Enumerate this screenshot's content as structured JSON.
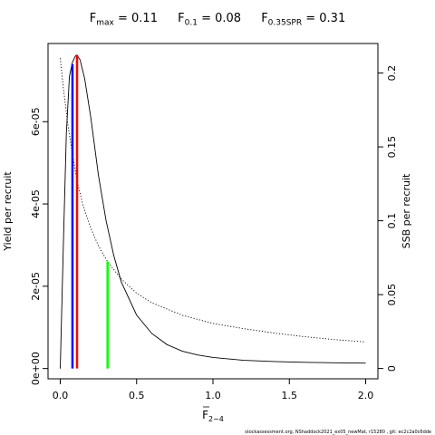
{
  "title": {
    "fmax": {
      "sym": "F",
      "sub": "max",
      "value": " = 0.11"
    },
    "f01": {
      "sym": "F",
      "sub": "0.1",
      "value": " = 0.08"
    },
    "fspr": {
      "sym": "F",
      "sub": "0.35SPR",
      "value": " = 0.31"
    }
  },
  "footer_text": "stockassessment.org, NShaddock2021_ex05_newMat, r15280 , git: ec2c2a0c6dde",
  "chart_data": {
    "type": "line",
    "xlabel": {
      "sym": "F",
      "sub": "2−4"
    },
    "ylabel": "Yield per recruit",
    "y2label": "SSB per recruit",
    "xlim": [
      -0.08,
      2.08
    ],
    "ylim": [
      -2.5e-06,
      7.9e-05
    ],
    "y2lim": [
      -0.007,
      0.22
    ],
    "x_ticks": [
      0,
      0.5,
      1,
      1.5,
      2
    ],
    "x_tick_labels": [
      "0.0",
      "0.5",
      "1.0",
      "1.5",
      "2.0"
    ],
    "y_ticks": [
      0,
      2e-05,
      4e-05,
      6e-05
    ],
    "y_tick_labels": [
      "0e+00",
      "2e-05",
      "4e-05",
      "6e-05"
    ],
    "y2_ticks": [
      0,
      0.05,
      0.1,
      0.15,
      0.2
    ],
    "y2_tick_labels": [
      "0",
      "0.05",
      "0.1",
      "0.15",
      "0.2"
    ],
    "series": [
      {
        "axis": "left",
        "style": "solid",
        "x": [
          0,
          0.02,
          0.04,
          0.06,
          0.08,
          0.1,
          0.11,
          0.13,
          0.16,
          0.2,
          0.25,
          0.3,
          0.35,
          0.4,
          0.5,
          0.6,
          0.7,
          0.8,
          0.9,
          1.0,
          1.2,
          1.4,
          1.6,
          1.8,
          2.0
        ],
        "y": [
          0,
          3e-05,
          5.7e-05,
          7.1e-05,
          7.45e-05,
          7.6e-05,
          7.62e-05,
          7.5e-05,
          7.05e-05,
          6.1e-05,
          4.7e-05,
          3.6e-05,
          2.75e-05,
          2.1e-05,
          1.3e-05,
          8.5e-06,
          5.8e-06,
          4.2e-06,
          3.3e-06,
          2.7e-06,
          2e-06,
          1.7e-06,
          1.5e-06,
          1.4e-06,
          1.3e-06
        ]
      },
      {
        "axis": "right",
        "style": "dotted",
        "x": [
          0,
          0.02,
          0.05,
          0.08,
          0.11,
          0.15,
          0.2,
          0.25,
          0.31,
          0.4,
          0.5,
          0.6,
          0.8,
          1.0,
          1.2,
          1.4,
          1.6,
          1.8,
          2.0
        ],
        "y": [
          0.21,
          0.19,
          0.165,
          0.145,
          0.127,
          0.11,
          0.095,
          0.083,
          0.0723,
          0.0605,
          0.051,
          0.0445,
          0.036,
          0.0305,
          0.027,
          0.024,
          0.0215,
          0.0195,
          0.018
        ]
      }
    ],
    "reference_lines": [
      {
        "label": "F0.1",
        "x": 0.08,
        "y": 7.4e-05,
        "color": "#0000ff"
      },
      {
        "label": "Fmax",
        "x": 0.11,
        "y": 7.62e-05,
        "color": "#ff0000"
      },
      {
        "label": "F0.35SPR",
        "x": 0.31,
        "y": 2.6e-05,
        "color": "#00ff00"
      }
    ],
    "grid": false,
    "legend": "none"
  }
}
